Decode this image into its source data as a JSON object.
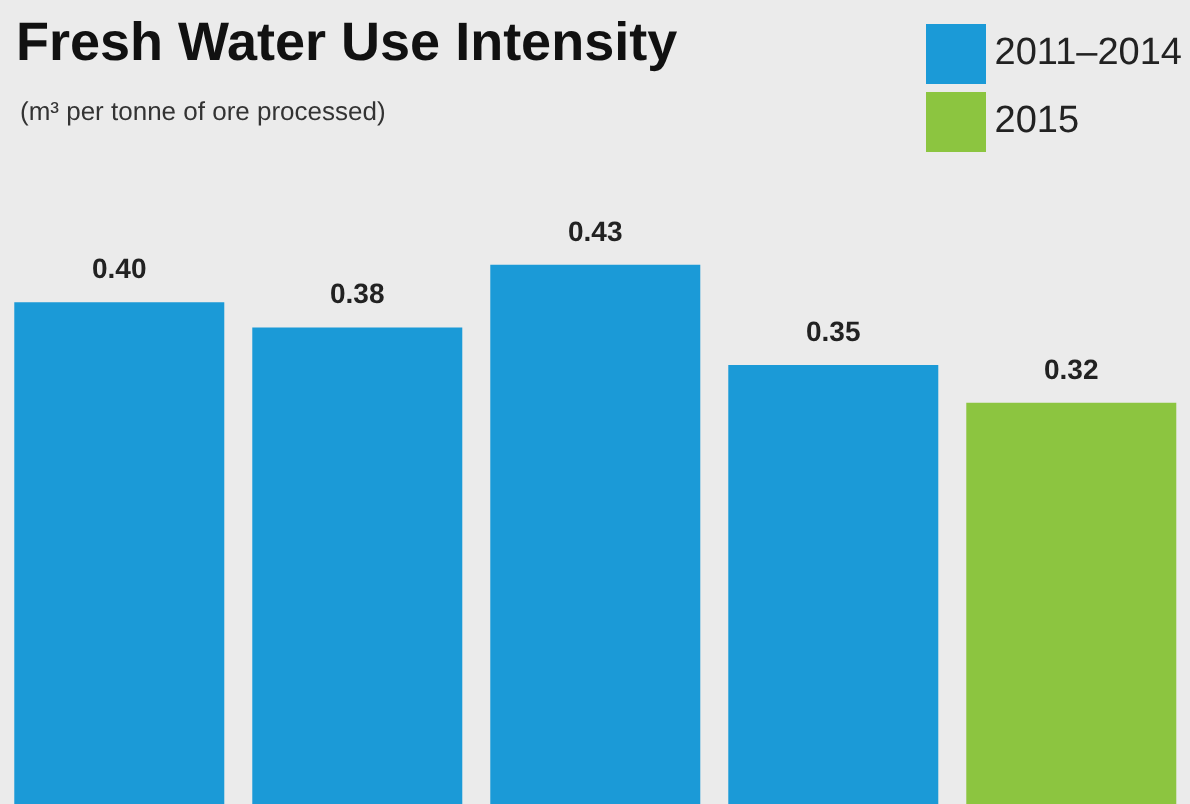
{
  "chart_data": {
    "type": "bar",
    "title": "Fresh Water Use Intensity",
    "subtitle": "(m³ per tonne of ore processed)",
    "categories": [
      null,
      null,
      null,
      null,
      null
    ],
    "stacked": true,
    "legend": "top right",
    "series": [
      {
        "name": "2011–2014",
        "color": "#1b9ad7",
        "values": [
          0.4,
          0.38,
          0.43,
          0.35,
          null
        ],
        "value_labels": [
          "0.40",
          "0.38",
          "0.43",
          "0.35",
          null
        ]
      },
      {
        "name": "2015",
        "color": "#8cc540",
        "values": [
          null,
          null,
          null,
          null,
          0.32
        ],
        "value_labels": [
          null,
          null,
          null,
          null,
          "0.32"
        ]
      }
    ]
  }
}
